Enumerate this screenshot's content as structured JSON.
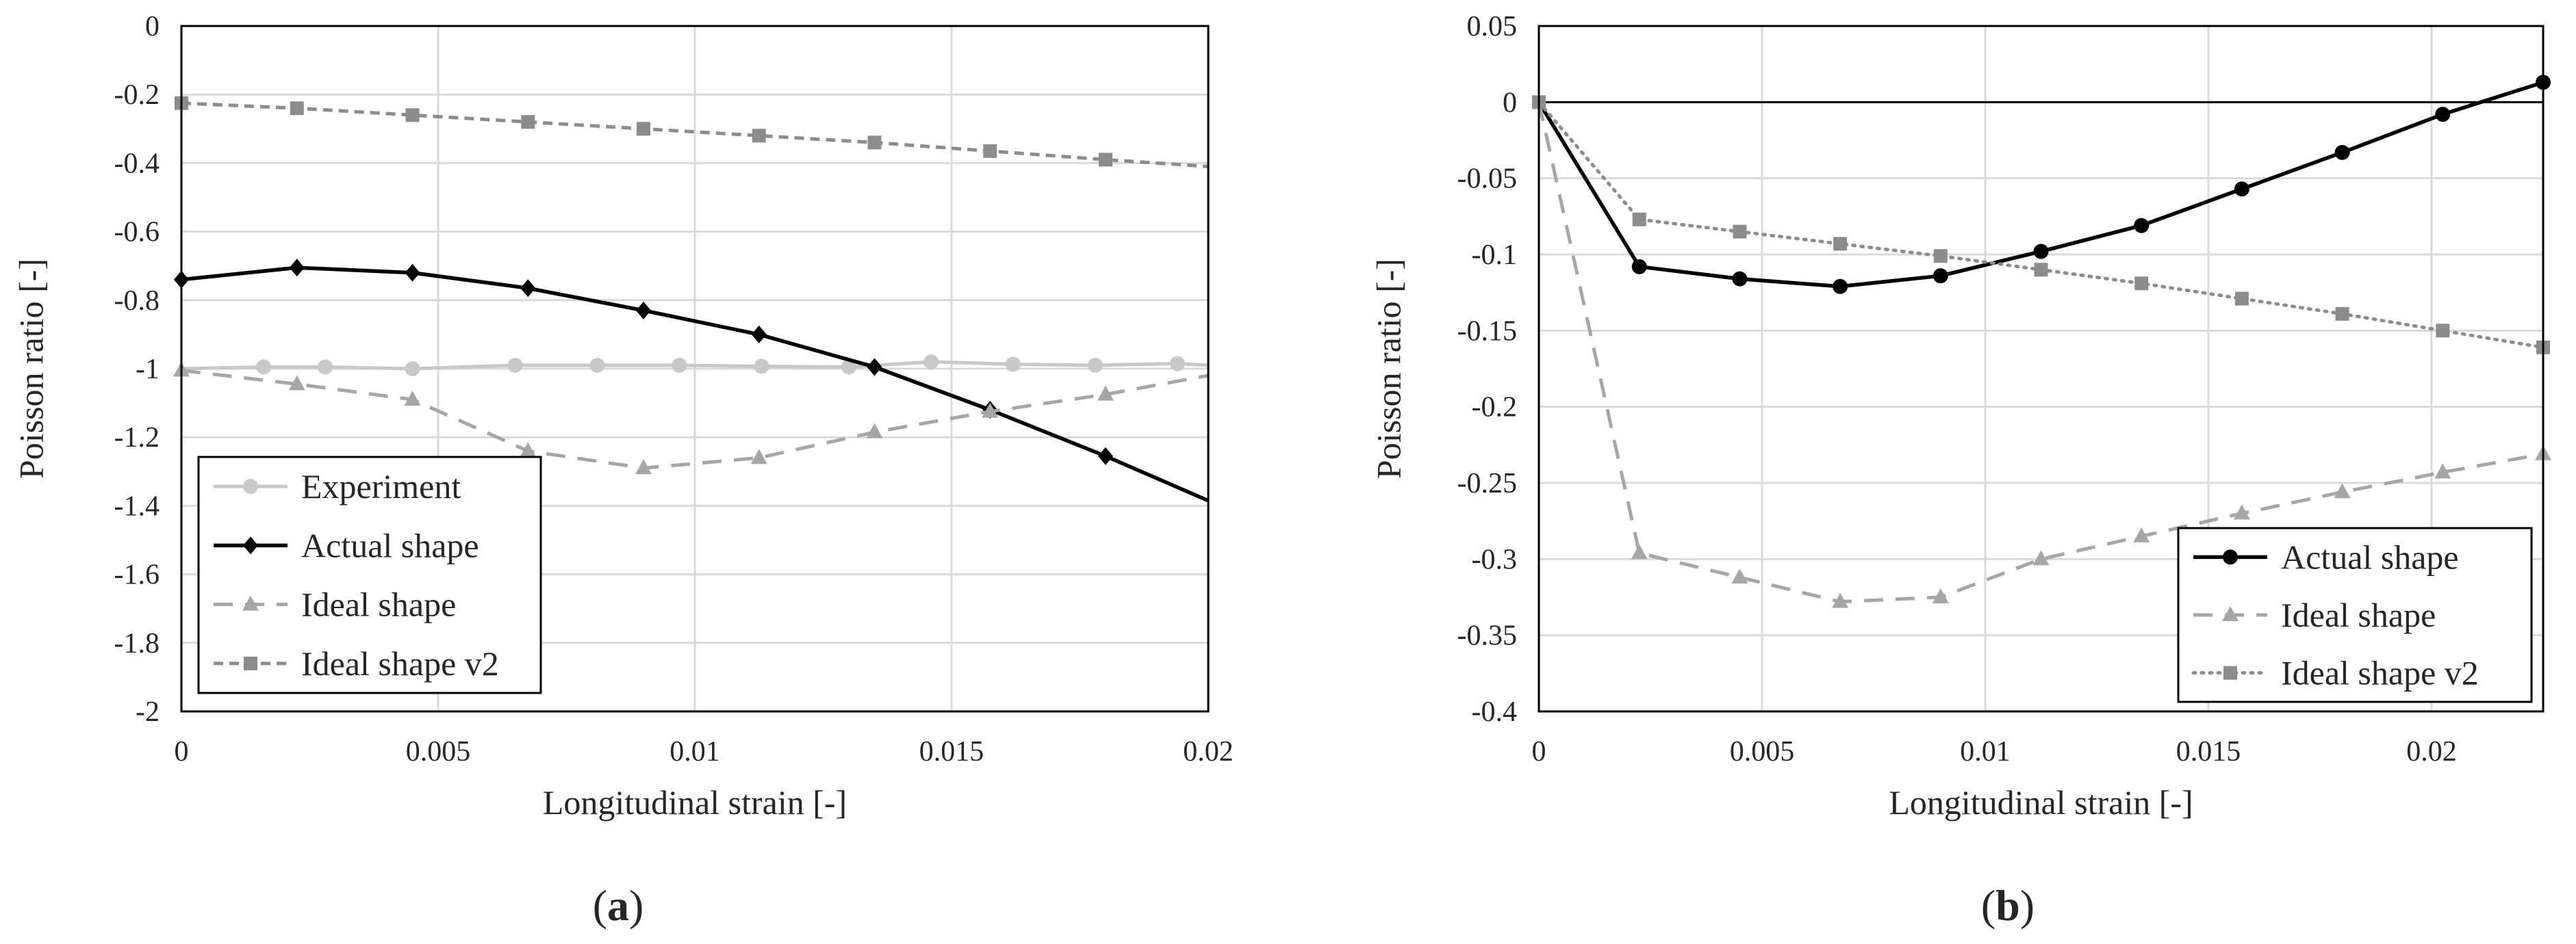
{
  "chart_data": [
    {
      "type": "line",
      "panel_label": "(a)",
      "xlabel": "Longitudinal strain [-]",
      "ylabel": "Poisson ratio [-]",
      "xlim": [
        0,
        0.02
      ],
      "ylim": [
        -2,
        0
      ],
      "xticks": [
        0,
        0.005,
        0.01,
        0.015,
        0.02
      ],
      "xtick_labels": [
        "0",
        "0.005",
        "0.01",
        "0.015",
        "0.02"
      ],
      "yticks": [
        0,
        -0.2,
        -0.4,
        -0.6,
        -0.8,
        -1,
        -1.2,
        -1.4,
        -1.6,
        -1.8,
        -2
      ],
      "ytick_labels": [
        "0",
        "-0.2",
        "-0.4",
        "-0.6",
        "-0.8",
        "-1",
        "-1.2",
        "-1.4",
        "-1.6",
        "-1.8",
        "-2"
      ],
      "grid": true,
      "legend_position": "bottom-left",
      "series": [
        {
          "name": "Experiment",
          "color": "#c8c8c8",
          "dash": "solid",
          "marker": "circle",
          "x": [
            0,
            0.0016,
            0.0028,
            0.0045,
            0.0065,
            0.0081,
            0.0097,
            0.0113,
            0.013,
            0.0146,
            0.0162,
            0.0178,
            0.0194,
            0.02
          ],
          "y": [
            -1.0,
            -0.995,
            -0.995,
            -1.0,
            -0.99,
            -0.99,
            -0.99,
            -0.993,
            -0.995,
            -0.98,
            -0.987,
            -0.99,
            -0.985,
            -0.99
          ],
          "marker_indices": [
            1,
            2,
            3,
            4,
            5,
            6,
            7,
            8,
            9,
            10,
            11,
            12
          ]
        },
        {
          "name": "Actual shape",
          "color": "#000000",
          "dash": "solid",
          "marker": "diamond",
          "x": [
            0,
            0.00225,
            0.0045,
            0.00675,
            0.009,
            0.01125,
            0.0135,
            0.01575,
            0.018,
            0.02
          ],
          "y": [
            -0.74,
            -0.705,
            -0.72,
            -0.765,
            -0.83,
            -0.9,
            -0.995,
            -1.12,
            -1.255,
            -1.385
          ],
          "marker_indices": [
            0,
            1,
            2,
            3,
            4,
            5,
            6,
            7,
            8
          ]
        },
        {
          "name": "Ideal shape",
          "color": "#a6a6a6",
          "dash": "long",
          "marker": "triangle",
          "x": [
            0,
            0.00225,
            0.0045,
            0.00675,
            0.009,
            0.01125,
            0.0135,
            0.01575,
            0.018,
            0.02
          ],
          "y": [
            -1.005,
            -1.045,
            -1.09,
            -1.24,
            -1.29,
            -1.26,
            -1.185,
            -1.125,
            -1.075,
            -1.02
          ],
          "marker_indices": [
            0,
            1,
            2,
            3,
            4,
            5,
            6,
            7,
            8
          ]
        },
        {
          "name": "Ideal shape v2",
          "color": "#8c8c8c",
          "dash": "short",
          "marker": "square",
          "x": [
            0,
            0.00225,
            0.0045,
            0.00675,
            0.009,
            0.01125,
            0.0135,
            0.01575,
            0.018,
            0.02
          ],
          "y": [
            -0.225,
            -0.24,
            -0.26,
            -0.28,
            -0.3,
            -0.32,
            -0.34,
            -0.365,
            -0.39,
            -0.41
          ],
          "marker_indices": [
            0,
            1,
            2,
            3,
            4,
            5,
            6,
            7,
            8
          ]
        }
      ]
    },
    {
      "type": "line",
      "panel_label": "(b)",
      "xlabel": "Longitudinal strain [-]",
      "ylabel": "Poisson ratio [-]",
      "xlim": [
        0,
        0.0225
      ],
      "ylim": [
        -0.4,
        0.05
      ],
      "xticks": [
        0,
        0.005,
        0.01,
        0.015,
        0.02
      ],
      "xtick_labels": [
        "0",
        "0.005",
        "0.01",
        "0.015",
        "0.02"
      ],
      "yticks": [
        0.05,
        0,
        -0.05,
        -0.1,
        -0.15,
        -0.2,
        -0.25,
        -0.3,
        -0.35,
        -0.4
      ],
      "ytick_labels": [
        "0.05",
        "0",
        "-0.05",
        "-0.1",
        "-0.15",
        "-0.2",
        "-0.25",
        "-0.3",
        "-0.35",
        "-0.4"
      ],
      "grid": true,
      "zero_line": true,
      "legend_position": "bottom-right",
      "series": [
        {
          "name": "Actual shape",
          "color": "#000000",
          "dash": "solid",
          "marker": "circle",
          "x": [
            0,
            0.00225,
            0.0045,
            0.00675,
            0.009,
            0.01125,
            0.0135,
            0.01575,
            0.018,
            0.02025,
            0.0225
          ],
          "y": [
            0,
            -0.108,
            -0.116,
            -0.121,
            -0.114,
            -0.098,
            -0.081,
            -0.057,
            -0.033,
            -0.008,
            0.013
          ],
          "marker_indices": [
            1,
            2,
            3,
            4,
            5,
            6,
            7,
            8,
            9,
            10
          ]
        },
        {
          "name": "Ideal shape",
          "color": "#a6a6a6",
          "dash": "long",
          "marker": "triangle",
          "x": [
            0,
            0.00225,
            0.0045,
            0.00675,
            0.009,
            0.01125,
            0.0135,
            0.01575,
            0.018,
            0.02025,
            0.0225
          ],
          "y": [
            0,
            -0.296,
            -0.312,
            -0.328,
            -0.325,
            -0.3,
            -0.285,
            -0.27,
            -0.256,
            -0.243,
            -0.231
          ],
          "marker_indices": [
            1,
            2,
            3,
            4,
            5,
            6,
            7,
            8,
            9,
            10
          ]
        },
        {
          "name": "Ideal shape v2",
          "color": "#8c8c8c",
          "dash": "dotted",
          "marker": "square",
          "x": [
            0,
            0.00225,
            0.0045,
            0.00675,
            0.009,
            0.01125,
            0.0135,
            0.01575,
            0.018,
            0.02025,
            0.0225
          ],
          "y": [
            0,
            -0.077,
            -0.085,
            -0.093,
            -0.101,
            -0.11,
            -0.119,
            -0.129,
            -0.139,
            -0.15,
            -0.161
          ],
          "marker_indices": [
            0,
            1,
            2,
            3,
            4,
            5,
            6,
            7,
            8,
            9,
            10
          ]
        }
      ]
    }
  ]
}
